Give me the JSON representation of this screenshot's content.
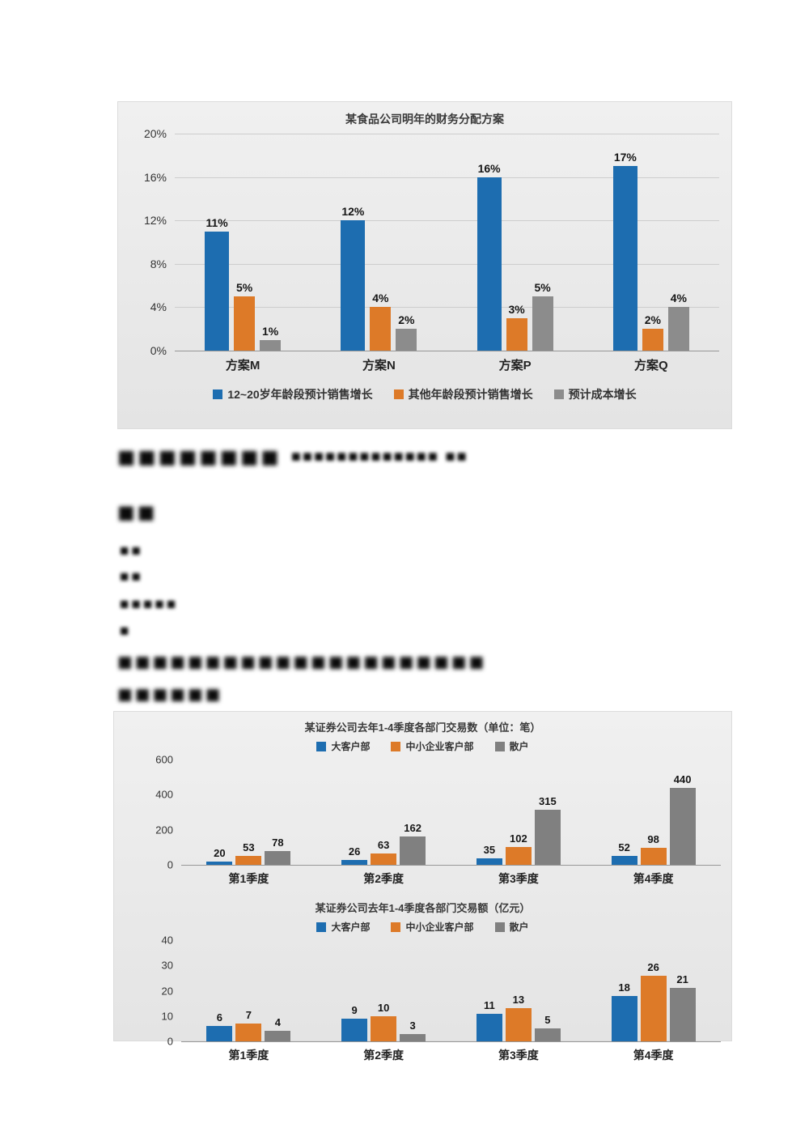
{
  "chart_data": [
    {
      "type": "bar",
      "title": "某食品公司明年的财务分配方案",
      "categories": [
        "方案M",
        "方案N",
        "方案P",
        "方案Q"
      ],
      "series": [
        {
          "name": "12~20岁年龄段预计销售增长",
          "color": "#1d6db0",
          "values": [
            11,
            12,
            16,
            17
          ]
        },
        {
          "name": "其他年龄段预计销售增长",
          "color": "#dd7a28",
          "values": [
            5,
            4,
            3,
            2
          ]
        },
        {
          "name": "预计成本增长",
          "color": "#8c8c8c",
          "values": [
            1,
            2,
            5,
            4
          ]
        }
      ],
      "ylim": [
        0,
        20
      ],
      "yticks": [
        0,
        4,
        8,
        12,
        16,
        20
      ],
      "tick_suffix": "%",
      "value_suffix": "%",
      "grid": true,
      "legend_position": "bottom"
    },
    {
      "type": "bar",
      "title": "某证券公司去年1-4季度各部门交易数（单位：笔）",
      "categories": [
        "第1季度",
        "第2季度",
        "第3季度",
        "第4季度"
      ],
      "series": [
        {
          "name": "大客户部",
          "color": "#1d6db0",
          "values": [
            20,
            26,
            35,
            52
          ]
        },
        {
          "name": "中小企业客户部",
          "color": "#dd7a28",
          "values": [
            53,
            63,
            102,
            98
          ]
        },
        {
          "name": "散户",
          "color": "#808080",
          "values": [
            78,
            162,
            315,
            440
          ]
        }
      ],
      "ylim": [
        0,
        600
      ],
      "yticks": [
        0,
        200,
        400,
        600
      ],
      "tick_suffix": "",
      "value_suffix": "",
      "grid": false,
      "legend_position": "top"
    },
    {
      "type": "bar",
      "title": "某证券公司去年1-4季度各部门交易额（亿元）",
      "categories": [
        "第1季度",
        "第2季度",
        "第3季度",
        "第4季度"
      ],
      "series": [
        {
          "name": "大客户部",
          "color": "#1d6db0",
          "values": [
            6,
            9,
            11,
            18
          ]
        },
        {
          "name": "中小企业客户部",
          "color": "#dd7a28",
          "values": [
            7,
            10,
            13,
            26
          ]
        },
        {
          "name": "散户",
          "color": "#808080",
          "values": [
            4,
            3,
            5,
            21
          ]
        }
      ],
      "ylim": [
        0,
        40
      ],
      "yticks": [
        0,
        10,
        20,
        30,
        40
      ],
      "tick_suffix": "",
      "value_suffix": "",
      "grid": false,
      "legend_position": "top"
    }
  ],
  "questions": {
    "line1_big": "■■■■■■■■",
    "line1_small": "■■■■■■■■■■■■■ ■■",
    "line2_big": "■■",
    "optionA": "■■",
    "optionB": "■■",
    "optionC": "■■■■■",
    "optionD": "■",
    "para2_line1": "■■■■■■■■■■■■■■■■■■■■■",
    "para2_line2": "■■■■■■"
  }
}
